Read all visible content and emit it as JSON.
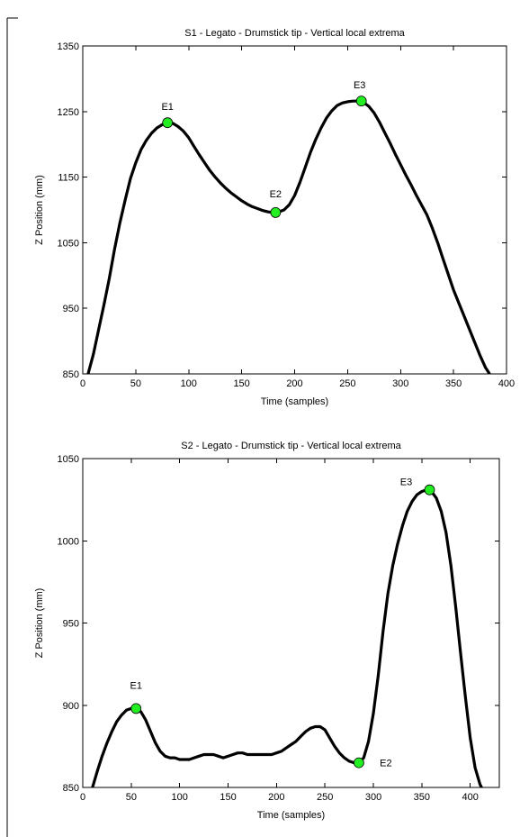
{
  "chart_data": [
    {
      "type": "line",
      "title": "S1 - Legato - Drumstick tip - Vertical local extrema",
      "xlabel": "Time (samples)",
      "ylabel": "Z Position (mm)",
      "xlim": [
        0,
        400
      ],
      "ylim": [
        850,
        1350
      ],
      "xticks": [
        0,
        50,
        100,
        150,
        200,
        250,
        300,
        350,
        400
      ],
      "yticks": [
        850,
        950,
        1050,
        1150,
        1250,
        1350
      ],
      "grid": false,
      "series": [
        {
          "x": [
            5,
            10,
            15,
            20,
            25,
            30,
            35,
            40,
            45,
            50,
            55,
            60,
            65,
            70,
            75,
            80,
            85,
            90,
            95,
            100,
            105,
            110,
            115,
            120,
            125,
            130,
            135,
            140,
            145,
            150,
            155,
            160,
            165,
            170,
            175,
            180,
            182,
            185,
            190,
            195,
            200,
            205,
            210,
            215,
            220,
            225,
            230,
            235,
            240,
            245,
            250,
            255,
            260,
            263,
            265,
            270,
            275,
            280,
            285,
            290,
            295,
            300,
            305,
            310,
            315,
            320,
            325,
            330,
            335,
            340,
            345,
            350,
            355,
            360,
            365,
            370,
            375,
            380,
            384
          ],
          "y": [
            850,
            880,
            918,
            955,
            995,
            1040,
            1080,
            1115,
            1148,
            1172,
            1192,
            1206,
            1217,
            1225,
            1230,
            1233,
            1232,
            1227,
            1220,
            1210,
            1197,
            1184,
            1172,
            1160,
            1150,
            1141,
            1133,
            1126,
            1120,
            1114,
            1109,
            1105,
            1102,
            1099,
            1097,
            1096,
            1096,
            1097,
            1100,
            1108,
            1122,
            1142,
            1165,
            1188,
            1208,
            1225,
            1240,
            1251,
            1259,
            1263,
            1265,
            1266,
            1266,
            1265,
            1264,
            1258,
            1248,
            1234,
            1218,
            1202,
            1185,
            1169,
            1153,
            1138,
            1122,
            1107,
            1092,
            1072,
            1050,
            1026,
            1002,
            978,
            958,
            938,
            918,
            898,
            878,
            860,
            850
          ]
        }
      ],
      "markers": [
        {
          "label": "E1",
          "x": 80,
          "y": 1233
        },
        {
          "label": "E2",
          "x": 182,
          "y": 1096
        },
        {
          "label": "E3",
          "x": 263,
          "y": 1266
        }
      ],
      "marker_color": "#22ee22"
    },
    {
      "type": "line",
      "title": "S2 - Legato - Drumstick tip - Vertical local extrema",
      "xlabel": "Time (samples)",
      "ylabel": "Z Position (mm)",
      "xlim": [
        0,
        430
      ],
      "ylim": [
        850,
        1050
      ],
      "xticks": [
        0,
        50,
        100,
        150,
        200,
        250,
        300,
        350,
        400
      ],
      "yticks": [
        850,
        900,
        950,
        1000,
        1050
      ],
      "grid": false,
      "series": [
        {
          "x": [
            10,
            15,
            20,
            25,
            30,
            35,
            40,
            45,
            50,
            55,
            60,
            65,
            70,
            75,
            80,
            85,
            90,
            95,
            100,
            105,
            110,
            115,
            120,
            125,
            130,
            135,
            140,
            145,
            150,
            155,
            160,
            165,
            170,
            175,
            180,
            185,
            190,
            195,
            200,
            205,
            210,
            215,
            220,
            225,
            230,
            235,
            240,
            245,
            250,
            255,
            260,
            265,
            270,
            275,
            280,
            285,
            290,
            295,
            300,
            305,
            310,
            315,
            320,
            325,
            330,
            335,
            340,
            345,
            350,
            355,
            358,
            360,
            365,
            370,
            375,
            380,
            385,
            390,
            395,
            400,
            405,
            410,
            415
          ],
          "y": [
            850,
            860,
            869,
            877,
            884,
            890,
            894,
            897,
            898,
            898,
            896,
            891,
            884,
            877,
            872,
            869,
            868,
            868,
            867,
            867,
            867,
            868,
            869,
            870,
            870,
            870,
            869,
            868,
            869,
            870,
            871,
            871,
            870,
            870,
            870,
            870,
            870,
            870,
            871,
            872,
            874,
            876,
            878,
            881,
            884,
            886,
            887,
            887,
            885,
            880,
            875,
            871,
            868,
            866,
            865,
            865,
            868,
            878,
            895,
            918,
            945,
            968,
            985,
            998,
            1009,
            1018,
            1024,
            1028,
            1030,
            1031,
            1031,
            1030,
            1026,
            1018,
            1005,
            985,
            960,
            932,
            905,
            880,
            862,
            852,
            846
          ]
        }
      ],
      "markers": [
        {
          "label": "E1",
          "x": 55,
          "y": 898
        },
        {
          "label": "E2",
          "x": 285,
          "y": 865
        },
        {
          "label": "E3",
          "x": 358,
          "y": 1031
        }
      ],
      "marker_color": "#22ee22"
    }
  ]
}
